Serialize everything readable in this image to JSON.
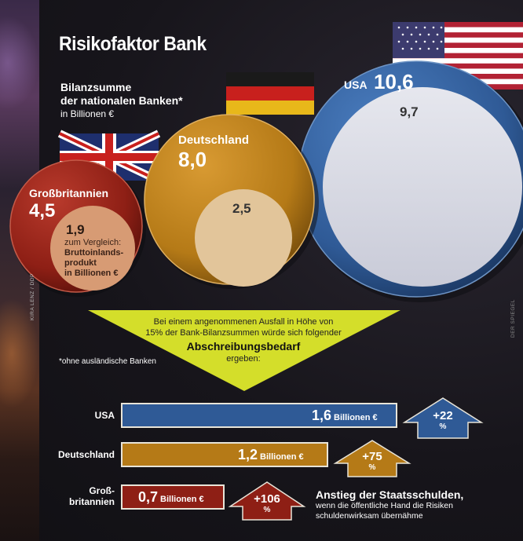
{
  "header": {
    "title": "Risikofaktor Bank",
    "subtitle_line1": "Bilanzsumme",
    "subtitle_line2": "der nationalen Banken*",
    "subtitle_unit": "in Billionen €"
  },
  "credits": {
    "left": "KIRA LENZ / DDP",
    "right": "DER SPIEGEL"
  },
  "footnote": "*ohne ausländische Banken",
  "note": {
    "line1": "Bei einem angenommenen Ausfall in Höhe von",
    "line2": "15% der Bank-Bilanzsummen würde sich folgender",
    "bold": "Abschreibungsbedarf",
    "line3": "ergeben:"
  },
  "circles": {
    "usa": {
      "name": "USA",
      "value_label": "10,6",
      "inner_label": "9,7"
    },
    "de": {
      "name": "Deutschland",
      "value_label": "8,0",
      "inner_label": "2,5"
    },
    "uk": {
      "name": "Großbritannien",
      "value_label": "4,5",
      "inner_label": "1,9",
      "compare1": "zum Vergleich:",
      "compare2": "Bruttoinlands-",
      "compare3": "produkt",
      "compare4": "in Billionen €"
    }
  },
  "bars": {
    "usa": {
      "country": "USA",
      "value": "1,6",
      "unit": "Billionen €",
      "increase": "+22",
      "pct": "%"
    },
    "de": {
      "country": "Deutschland",
      "value": "1,2",
      "unit": "Billionen €",
      "increase": "+75",
      "pct": "%"
    },
    "uk": {
      "country1": "Groß-",
      "country2": "britannien",
      "value": "0,7",
      "unit": "Billionen €",
      "increase": "+106",
      "pct": "%"
    }
  },
  "annotation": {
    "title": "Anstieg der Staatsschulden,",
    "line1": "wenn die öffentliche Hand die Risiken",
    "line2": "schuldenwirksam übernähme"
  },
  "colors": {
    "usa": "#2f5a96",
    "de": "#b57a17",
    "uk": "#8e1f15",
    "usa_inner": "#dcdde6",
    "de_inner": "#e2c59a",
    "uk_inner": "#d79b74",
    "funnel": "#d4de2a"
  },
  "chart_data": {
    "type": "bubble-and-bar",
    "title": "Risikofaktor Bank",
    "bubbles": {
      "label": "Bilanzsumme der nationalen Banken (Billionen €)",
      "categories": [
        "USA",
        "Deutschland",
        "Großbritannien"
      ],
      "bank_assets": [
        10.6,
        8.0,
        4.5
      ],
      "gdp": [
        9.7,
        2.5,
        1.9
      ]
    },
    "bars": {
      "label": "Abschreibungsbedarf bei 15% Ausfall (Billionen €)",
      "categories": [
        "USA",
        "Deutschland",
        "Großbritannien"
      ],
      "values": [
        1.6,
        1.2,
        0.7
      ],
      "debt_increase_pct": [
        22,
        75,
        106
      ]
    }
  }
}
